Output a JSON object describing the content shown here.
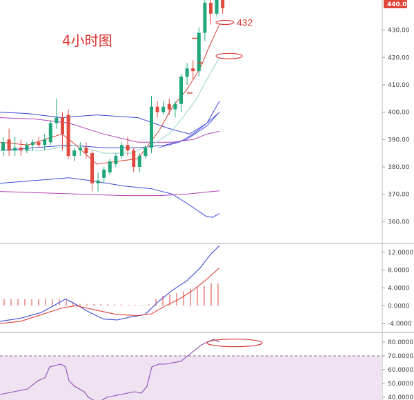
{
  "title": "4小时图",
  "colors": {
    "up": "#1fa67a",
    "down": "#e04a3f",
    "boll": "#3b47d6",
    "ma_red": "#d9402f",
    "ma_gray": "#9ad3cf",
    "ma_pink": "#b03fb5",
    "ma_blue": "#5c62d6",
    "macd_dif": "#3b47d6",
    "macd_dea": "#e0403a",
    "macd_hist": "#e0403a",
    "rsi_line": "#8e49b5",
    "rsi_fill": "#efe3f2",
    "annotation": "#d63a3a",
    "price_tag": "#e0443a"
  },
  "chart_data": [
    {
      "type": "candlestick",
      "name": "price",
      "ylim": [
        352,
        441
      ],
      "y_ticks": [
        360,
        370,
        380,
        390,
        400,
        410,
        420,
        430
      ],
      "last_price": "440.07",
      "candles": [
        {
          "o": 386,
          "h": 391,
          "l": 384,
          "c": 389
        },
        {
          "o": 390,
          "h": 394,
          "l": 384,
          "c": 386
        },
        {
          "o": 386,
          "h": 391,
          "l": 384,
          "c": 387
        },
        {
          "o": 387,
          "h": 390,
          "l": 384,
          "c": 386
        },
        {
          "o": 386,
          "h": 389,
          "l": 385,
          "c": 388
        },
        {
          "o": 388,
          "h": 390,
          "l": 386,
          "c": 389
        },
        {
          "o": 389,
          "h": 391,
          "l": 387,
          "c": 388
        },
        {
          "o": 388,
          "h": 392,
          "l": 386,
          "c": 390
        },
        {
          "o": 389,
          "h": 397,
          "l": 388,
          "c": 396
        },
        {
          "o": 396,
          "h": 405,
          "l": 394,
          "c": 398
        },
        {
          "o": 398,
          "h": 400,
          "l": 386,
          "c": 392
        },
        {
          "o": 399,
          "h": 401,
          "l": 383,
          "c": 384
        },
        {
          "o": 384,
          "h": 387,
          "l": 382,
          "c": 386
        },
        {
          "o": 386,
          "h": 389,
          "l": 384,
          "c": 387
        },
        {
          "o": 387,
          "h": 389,
          "l": 383,
          "c": 385
        },
        {
          "o": 385,
          "h": 386,
          "l": 371,
          "c": 374
        },
        {
          "o": 374,
          "h": 378,
          "l": 371,
          "c": 375
        },
        {
          "o": 376,
          "h": 380,
          "l": 374,
          "c": 379
        },
        {
          "o": 378,
          "h": 383,
          "l": 377,
          "c": 382
        },
        {
          "o": 381,
          "h": 385,
          "l": 380,
          "c": 384
        },
        {
          "o": 384,
          "h": 389,
          "l": 383,
          "c": 388
        },
        {
          "o": 388,
          "h": 391,
          "l": 384,
          "c": 386
        },
        {
          "o": 386,
          "h": 387,
          "l": 378,
          "c": 380
        },
        {
          "o": 380,
          "h": 385,
          "l": 378,
          "c": 384
        },
        {
          "o": 384,
          "h": 388,
          "l": 383,
          "c": 387
        },
        {
          "o": 387,
          "h": 406,
          "l": 385,
          "c": 402
        },
        {
          "o": 402,
          "h": 404,
          "l": 398,
          "c": 400
        },
        {
          "o": 400,
          "h": 404,
          "l": 399,
          "c": 402
        },
        {
          "o": 403,
          "h": 405,
          "l": 399,
          "c": 401
        },
        {
          "o": 401,
          "h": 404,
          "l": 398,
          "c": 403
        },
        {
          "o": 403,
          "h": 414,
          "l": 400,
          "c": 413
        },
        {
          "o": 413,
          "h": 418,
          "l": 410,
          "c": 416
        },
        {
          "o": 416,
          "h": 419,
          "l": 412,
          "c": 415
        },
        {
          "o": 415,
          "h": 431,
          "l": 413,
          "c": 429
        },
        {
          "o": 429,
          "h": 442,
          "l": 426,
          "c": 440
        },
        {
          "o": 440,
          "h": 442,
          "l": 432,
          "c": 436
        },
        {
          "o": 436,
          "h": 443,
          "l": 435,
          "c": 441
        },
        {
          "o": 441,
          "h": 443,
          "l": 436,
          "c": 438
        }
      ],
      "candle_x_start": 2,
      "candle_x_step": 8.6,
      "overlays": [
        {
          "key": "boll_upper",
          "color": "boll",
          "points": [
            [
              0,
              400
            ],
            [
              40,
              399.5
            ],
            [
              90,
              398
            ],
            [
              140,
              399
            ],
            [
              200,
              398
            ],
            [
              245,
              394
            ],
            [
              275,
              392
            ],
            [
              300,
              396
            ],
            [
              318,
              404
            ]
          ]
        },
        {
          "key": "boll_mid",
          "color": "boll",
          "points": [
            [
              0,
              386
            ],
            [
              50,
              387
            ],
            [
              100,
              388
            ],
            [
              150,
              387
            ],
            [
              200,
              387
            ],
            [
              240,
              388
            ],
            [
              270,
              390
            ],
            [
              300,
              395
            ],
            [
              318,
              400
            ]
          ]
        },
        {
          "key": "boll_lower",
          "color": "boll",
          "points": [
            [
              0,
              374
            ],
            [
              50,
              375
            ],
            [
              100,
              376
            ],
            [
              130,
              375
            ],
            [
              180,
              373
            ],
            [
              220,
              372
            ],
            [
              250,
              370
            ],
            [
              275,
              366
            ],
            [
              298,
              362
            ],
            [
              308,
              361.5
            ],
            [
              318,
              363
            ]
          ]
        },
        {
          "key": "ma_pink",
          "color": "ma_pink",
          "points": [
            [
              0,
              371
            ],
            [
              60,
              370.5
            ],
            [
              120,
              370
            ],
            [
              180,
              369.5
            ],
            [
              230,
              369.5
            ],
            [
              270,
              370
            ],
            [
              300,
              370.8
            ],
            [
              318,
              371.2
            ]
          ]
        },
        {
          "key": "ma_slow",
          "color": "ma_pink",
          "points": [
            [
              0,
              398
            ],
            [
              50,
              397.5
            ],
            [
              100,
              396
            ],
            [
              150,
              392
            ],
            [
              200,
              389
            ],
            [
              250,
              389
            ],
            [
              280,
              390
            ],
            [
              300,
              392
            ],
            [
              318,
              393
            ]
          ]
        },
        {
          "key": "ma_red",
          "color": "ma_red",
          "points": [
            [
              0,
              389
            ],
            [
              40,
              388
            ],
            [
              90,
              392
            ],
            [
              110,
              388
            ],
            [
              140,
              381
            ],
            [
              170,
              382
            ],
            [
              200,
              383
            ],
            [
              230,
              393
            ],
            [
              250,
              402
            ],
            [
              270,
              408
            ],
            [
              290,
              416
            ],
            [
              305,
              425
            ],
            [
              318,
              432
            ]
          ]
        },
        {
          "key": "ma_gray",
          "color": "ma_gray",
          "points": [
            [
              0,
              386
            ],
            [
              60,
              386
            ],
            [
              110,
              388
            ],
            [
              150,
              385
            ],
            [
              190,
              385
            ],
            [
              220,
              388
            ],
            [
              245,
              392
            ],
            [
              265,
              398
            ],
            [
              285,
              405
            ],
            [
              300,
              412
            ],
            [
              318,
              420
            ]
          ]
        },
        {
          "key": "ma_blue",
          "color": "ma_blue",
          "points": [
            [
              230,
              387
            ],
            [
              260,
              389
            ],
            [
              280,
              392
            ],
            [
              300,
              396
            ],
            [
              318,
              400
            ]
          ]
        }
      ],
      "annotations": [
        {
          "text": "432",
          "price": 432.8,
          "x": 343
        },
        {
          "ellipse": true,
          "cx": 326,
          "price": 432.8,
          "rx": 13,
          "ry": 3
        },
        {
          "ellipse": true,
          "cx": 332,
          "price": 420.5,
          "rx": 19,
          "ry": 4
        }
      ],
      "markers": [
        {
          "x": 282,
          "price": 427
        },
        {
          "x": 290,
          "price": 418
        },
        {
          "x": 275,
          "price": 407
        }
      ]
    },
    {
      "type": "macd",
      "name": "macd",
      "ylim": [
        -6,
        14
      ],
      "y_ticks": [
        "12.0000",
        "8.0000",
        "4.0000",
        "0.0000",
        "-4.0000"
      ],
      "y_tick_values": [
        12,
        8,
        4,
        0,
        -4
      ],
      "dif": [
        [
          0,
          -3.5
        ],
        [
          30,
          -2.8
        ],
        [
          60,
          -1.5
        ],
        [
          80,
          0.2
        ],
        [
          95,
          1.5
        ],
        [
          110,
          0.3
        ],
        [
          130,
          -1.5
        ],
        [
          150,
          -3
        ],
        [
          170,
          -3.2
        ],
        [
          190,
          -2.5
        ],
        [
          210,
          -2
        ],
        [
          230,
          1
        ],
        [
          250,
          3.5
        ],
        [
          270,
          5.5
        ],
        [
          290,
          8.5
        ],
        [
          305,
          11.5
        ],
        [
          318,
          13.5
        ]
      ],
      "dea": [
        [
          0,
          -4
        ],
        [
          30,
          -3.5
        ],
        [
          60,
          -2
        ],
        [
          90,
          -0.5
        ],
        [
          110,
          0
        ],
        [
          140,
          -1
        ],
        [
          170,
          -2
        ],
        [
          200,
          -2.2
        ],
        [
          220,
          -1.8
        ],
        [
          240,
          0
        ],
        [
          260,
          1.5
        ],
        [
          280,
          3.5
        ],
        [
          300,
          6
        ],
        [
          318,
          8.5
        ]
      ],
      "hist": [
        [
          6,
          1.5
        ],
        [
          16,
          1.5
        ],
        [
          26,
          1.5
        ],
        [
          36,
          1.5
        ],
        [
          46,
          1.5
        ],
        [
          56,
          1.5
        ],
        [
          66,
          1.5
        ],
        [
          76,
          1.5
        ],
        [
          86,
          1.5
        ],
        [
          96,
          1.2
        ],
        [
          106,
          0.8
        ],
        [
          116,
          0.4
        ],
        [
          126,
          0.4
        ],
        [
          136,
          0.4
        ],
        [
          146,
          0.4
        ],
        [
          156,
          0.4
        ],
        [
          166,
          0.3
        ],
        [
          176,
          0.3
        ],
        [
          186,
          0.2
        ],
        [
          196,
          0.2
        ],
        [
          206,
          0.2
        ],
        [
          216,
          0.3
        ],
        [
          226,
          1.5
        ],
        [
          236,
          2.2
        ],
        [
          246,
          2.6
        ],
        [
          256,
          2.8
        ],
        [
          266,
          3.2
        ],
        [
          276,
          3.8
        ],
        [
          286,
          4.2
        ],
        [
          296,
          4.5
        ],
        [
          306,
          5.0
        ],
        [
          316,
          5.0
        ]
      ]
    },
    {
      "type": "line",
      "name": "rsi",
      "ylim": [
        38,
        87
      ],
      "y_ticks": [
        "80.0000",
        "70.0000",
        "60.0000",
        "50.0000",
        "40.0000"
      ],
      "y_tick_values": [
        80,
        70,
        60,
        50,
        40
      ],
      "reference_level": 70,
      "line": [
        [
          0,
          42
        ],
        [
          20,
          44
        ],
        [
          40,
          46
        ],
        [
          55,
          52
        ],
        [
          65,
          54
        ],
        [
          72,
          62
        ],
        [
          80,
          63
        ],
        [
          88,
          64
        ],
        [
          95,
          62
        ],
        [
          100,
          52
        ],
        [
          108,
          48
        ],
        [
          115,
          46
        ],
        [
          122,
          44
        ],
        [
          128,
          40
        ],
        [
          135,
          38
        ],
        [
          145,
          37
        ],
        [
          155,
          40
        ],
        [
          165,
          41
        ],
        [
          175,
          42
        ],
        [
          185,
          43
        ],
        [
          195,
          44
        ],
        [
          205,
          43
        ],
        [
          213,
          48
        ],
        [
          220,
          62
        ],
        [
          230,
          64
        ],
        [
          240,
          64
        ],
        [
          250,
          65
        ],
        [
          262,
          66
        ],
        [
          272,
          70
        ],
        [
          282,
          74
        ],
        [
          292,
          78
        ],
        [
          300,
          80
        ],
        [
          310,
          82
        ],
        [
          318,
          80
        ]
      ],
      "annotation": {
        "ellipse": true,
        "cx": 340,
        "value": 79.4,
        "rx": 40,
        "ry": 5.5
      }
    }
  ]
}
